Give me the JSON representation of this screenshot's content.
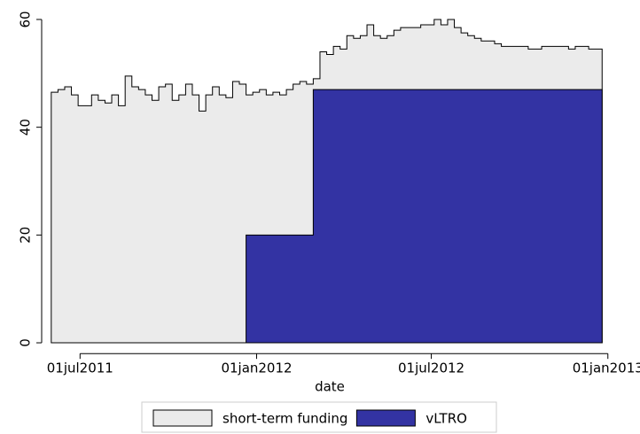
{
  "chart_data": {
    "type": "area",
    "x_label": "date",
    "x": [
      "2011-06-01",
      "2011-06-08",
      "2011-06-15",
      "2011-06-22",
      "2011-06-29",
      "2011-07-06",
      "2011-07-13",
      "2011-07-20",
      "2011-07-27",
      "2011-08-03",
      "2011-08-10",
      "2011-08-17",
      "2011-08-24",
      "2011-08-31",
      "2011-09-07",
      "2011-09-14",
      "2011-09-21",
      "2011-09-28",
      "2011-10-05",
      "2011-10-12",
      "2011-10-19",
      "2011-10-26",
      "2011-11-02",
      "2011-11-09",
      "2011-11-16",
      "2011-11-23",
      "2011-11-30",
      "2011-12-07",
      "2011-12-14",
      "2011-12-21",
      "2011-12-28",
      "2012-01-04",
      "2012-01-11",
      "2012-01-18",
      "2012-01-25",
      "2012-02-01",
      "2012-02-08",
      "2012-02-15",
      "2012-02-22",
      "2012-02-29",
      "2012-03-07",
      "2012-03-14",
      "2012-03-21",
      "2012-03-28",
      "2012-04-04",
      "2012-04-11",
      "2012-04-18",
      "2012-04-25",
      "2012-05-02",
      "2012-05-09",
      "2012-05-16",
      "2012-05-23",
      "2012-05-30",
      "2012-06-06",
      "2012-06-13",
      "2012-06-20",
      "2012-06-27",
      "2012-07-04",
      "2012-07-11",
      "2012-07-18",
      "2012-07-25",
      "2012-08-01",
      "2012-08-08",
      "2012-08-15",
      "2012-08-22",
      "2012-08-29",
      "2012-09-05",
      "2012-09-12",
      "2012-09-19",
      "2012-09-26",
      "2012-10-03",
      "2012-10-10",
      "2012-10-17",
      "2012-10-24",
      "2012-10-31",
      "2012-11-07",
      "2012-11-14",
      "2012-11-21",
      "2012-11-28",
      "2012-12-05",
      "2012-12-12",
      "2012-12-19",
      "2012-12-26"
    ],
    "series": [
      {
        "name": "short-term funding",
        "color": "#ebebeb",
        "values": [
          46.5,
          47,
          47.5,
          46,
          44,
          44,
          46,
          45,
          44.5,
          46,
          44,
          49.5,
          47.5,
          47,
          46,
          45,
          47.5,
          48,
          45,
          46,
          48,
          46,
          43,
          46,
          47.5,
          46,
          45.5,
          48.5,
          48,
          46,
          46.5,
          47,
          46,
          46.5,
          46,
          47,
          48,
          48.5,
          48,
          49,
          54,
          53.5,
          55,
          54.5,
          57,
          56.5,
          57,
          59,
          57,
          56.5,
          57,
          58,
          58.5,
          58.5,
          58.5,
          59,
          59,
          60,
          59,
          60,
          58.5,
          57.5,
          57,
          56.5,
          56,
          56,
          55.5,
          55,
          55,
          55,
          55,
          54.5,
          54.5,
          55,
          55,
          55,
          55,
          54.5,
          55,
          55,
          54.5,
          54.5,
          53
        ]
      },
      {
        "name": "vLTRO",
        "color": "#3333a3",
        "values": [
          null,
          null,
          null,
          null,
          null,
          null,
          null,
          null,
          null,
          null,
          null,
          null,
          null,
          null,
          null,
          null,
          null,
          null,
          null,
          null,
          null,
          null,
          null,
          null,
          null,
          null,
          null,
          null,
          null,
          20,
          20,
          20,
          20,
          20,
          20,
          20,
          20,
          20,
          20,
          47,
          47,
          47,
          47,
          47,
          47,
          47,
          47,
          47,
          47,
          47,
          47,
          47,
          47,
          47,
          47,
          47,
          47,
          47,
          47,
          47,
          47,
          47,
          47,
          47,
          47,
          47,
          47,
          47,
          47,
          47,
          47,
          47,
          47,
          47,
          47,
          47,
          47,
          47,
          47,
          47,
          47,
          47,
          47
        ]
      }
    ],
    "xlim": [
      "2011-05-22",
      "2013-01-16"
    ],
    "xticks": [
      {
        "value": "2011-07-01",
        "label": "01jul2011"
      },
      {
        "value": "2012-01-01",
        "label": "01jan2012"
      },
      {
        "value": "2012-07-01",
        "label": "01jul2012"
      },
      {
        "value": "2013-01-01",
        "label": "01jan2013"
      }
    ],
    "ylim": [
      -2,
      62
    ],
    "yticks": [
      0,
      20,
      40,
      60
    ],
    "legend": "bottom"
  }
}
